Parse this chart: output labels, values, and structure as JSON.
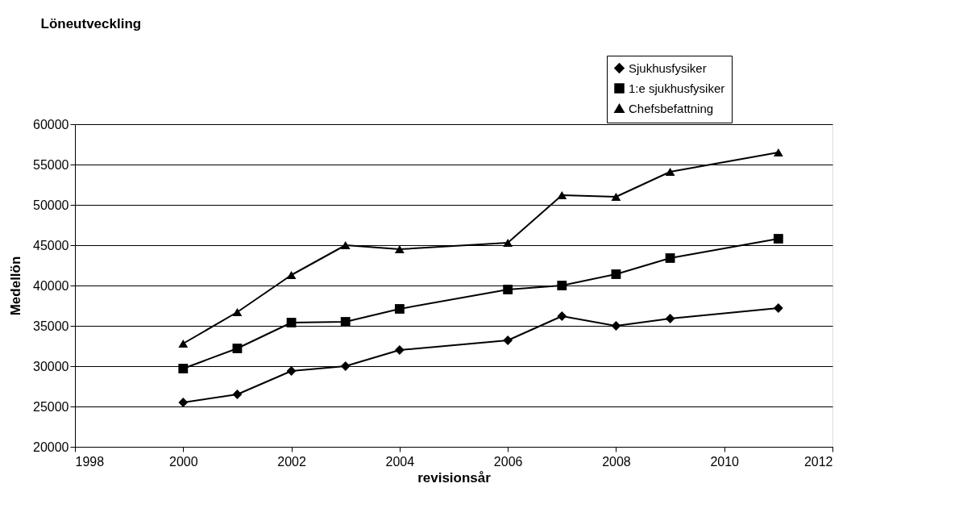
{
  "chart_data": {
    "type": "line",
    "title": "Löneutveckling",
    "xlabel": "revisionsår",
    "ylabel": "Medellön",
    "x": [
      2000,
      2001,
      2002,
      2003,
      2004,
      2006,
      2007,
      2008,
      2009,
      2011
    ],
    "series": [
      {
        "name": "Sjukhusfysiker",
        "color": "#000000",
        "marker": "diamond",
        "values": [
          25500,
          26500,
          29400,
          30000,
          32000,
          33200,
          36200,
          35000,
          35900,
          37200
        ]
      },
      {
        "name": "1:e sjukhusfysiker",
        "color": "#000000",
        "marker": "square",
        "values": [
          29700,
          32200,
          35400,
          35500,
          37100,
          39500,
          40000,
          41400,
          43400,
          45800
        ]
      },
      {
        "name": "Chefsbefattning",
        "color": "#000000",
        "marker": "triangle",
        "values": [
          32800,
          36700,
          41300,
          45000,
          44500,
          45300,
          51200,
          51000,
          54100,
          56500
        ]
      }
    ],
    "xlim": [
      1998,
      2012
    ],
    "xticks": [
      1998,
      2000,
      2002,
      2004,
      2006,
      2008,
      2010,
      2012
    ],
    "ylim": [
      20000,
      60000
    ],
    "yticks": [
      20000,
      25000,
      30000,
      35000,
      40000,
      45000,
      50000,
      55000,
      60000
    ],
    "grid": "y",
    "legend": "top right",
    "line_style": "solid"
  }
}
